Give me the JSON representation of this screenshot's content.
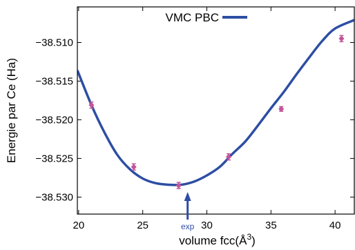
{
  "chart_data": {
    "type": "scatter",
    "title": "",
    "xlabel": "volume fcc(Å",
    "xlabel_sup": "3",
    "xlabel_close": ")",
    "ylabel": "Energie par Ce (Ha)",
    "xlim": [
      19.9,
      41.5
    ],
    "ylim": [
      -38.5322,
      -38.5054
    ],
    "x_ticks": [
      {
        "value": 20,
        "label": "20"
      },
      {
        "value": 25,
        "label": "25"
      },
      {
        "value": 30,
        "label": "30"
      },
      {
        "value": 35,
        "label": "35"
      },
      {
        "value": 40,
        "label": "40"
      }
    ],
    "y_ticks": [
      {
        "value": -38.51,
        "label": "−38.510"
      },
      {
        "value": -38.515,
        "label": "−38.515"
      },
      {
        "value": -38.52,
        "label": "−38.520"
      },
      {
        "value": -38.525,
        "label": "−38.525"
      },
      {
        "value": -38.53,
        "label": "−38.530"
      }
    ],
    "grid": false,
    "legend": {
      "position": "top-center",
      "entries": [
        {
          "label": "VMC PBC",
          "color": "#2d4ea3"
        }
      ]
    },
    "series": [
      {
        "name": "VMC PBC",
        "type": "line",
        "color": "#2d4ea3",
        "x": [
          19.9,
          21.0,
          22.0,
          23.0,
          24.0,
          25.0,
          26.0,
          27.0,
          28.0,
          29.0,
          30.0,
          31.0,
          32.0,
          33.0,
          34.0,
          35.0,
          36.0,
          37.0,
          38.0,
          39.0,
          40.0,
          41.5
        ],
        "y": [
          -38.5136,
          -38.5181,
          -38.5216,
          -38.5245,
          -38.5264,
          -38.5276,
          -38.5282,
          -38.5284,
          -38.5284,
          -38.528,
          -38.5272,
          -38.5261,
          -38.5244,
          -38.5228,
          -38.5207,
          -38.5185,
          -38.5164,
          -38.5141,
          -38.5119,
          -38.5098,
          -38.5082,
          -38.5071
        ]
      },
      {
        "name": "",
        "type": "scatter",
        "color": "#c2559a",
        "x": [
          21.0,
          24.3,
          27.8,
          31.7,
          35.8,
          40.5
        ],
        "y": [
          -38.5181,
          -38.5261,
          -38.5285,
          -38.5248,
          -38.5186,
          -38.5095
        ],
        "err": [
          0.0004,
          0.0004,
          0.0004,
          0.0004,
          0.0003,
          0.0004
        ]
      }
    ],
    "annotations": [
      {
        "label": "exp",
        "x": 28.5,
        "type": "arrow",
        "color": "#2d4ea3"
      }
    ]
  }
}
